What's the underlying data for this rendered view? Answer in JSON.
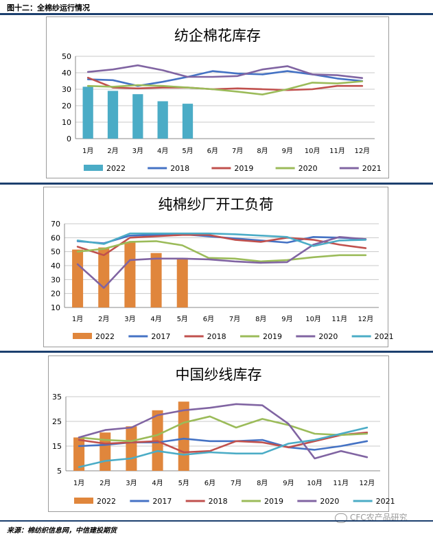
{
  "figure_label": "图十二：全棉纱运行情况",
  "source": "来源：棉纺织信息网，中信建投期货",
  "watermark": "CFC农产品研究",
  "chart_data": [
    {
      "type": "bar+line",
      "title": "纺企棉花库存",
      "categories": [
        "1月",
        "2月",
        "3月",
        "4月",
        "5月",
        "6月",
        "7月",
        "8月",
        "9月",
        "10月",
        "11月",
        "12月"
      ],
      "ylim": [
        0,
        50
      ],
      "yticks": [
        0,
        10,
        20,
        30,
        40,
        50
      ],
      "bar_color": "#4bacc6",
      "bar_series": {
        "name": "2022",
        "values": [
          31.5,
          29,
          27,
          22.7,
          21.2
        ]
      },
      "line_series": [
        {
          "name": "2018",
          "color": "#4472c4",
          "values": [
            36,
            35.5,
            32,
            34.5,
            37.5,
            41,
            39.5,
            39,
            41,
            39,
            36.5,
            35
          ]
        },
        {
          "name": "2019",
          "color": "#c0504d",
          "values": [
            37,
            31,
            30.5,
            31,
            31,
            30,
            30.5,
            30,
            29.5,
            30,
            32,
            32
          ]
        },
        {
          "name": "2020",
          "color": "#9bbb59",
          "values": [
            32,
            31.5,
            32.5,
            32,
            31,
            30,
            28.5,
            26.8,
            30,
            34,
            33.5,
            34.8
          ]
        },
        {
          "name": "2021",
          "color": "#8064a2",
          "values": [
            40.5,
            42,
            44.5,
            41.5,
            37.5,
            37.5,
            38,
            42,
            44,
            39,
            38.5,
            36.8
          ]
        }
      ],
      "grid": true,
      "legend": "bottom"
    },
    {
      "type": "bar+line",
      "title": "纯棉纱厂开工负荷",
      "categories": [
        "1月",
        "2月",
        "3月",
        "4月",
        "5月",
        "6月",
        "7月",
        "8月",
        "9月",
        "10月",
        "11月",
        "12月"
      ],
      "ylim": [
        10,
        70
      ],
      "yticks": [
        10,
        20,
        30,
        40,
        50,
        60,
        70
      ],
      "bar_color": "#e0863c",
      "bar_series": {
        "name": "2022",
        "values": [
          51.5,
          53,
          57,
          49,
          45.5
        ]
      },
      "line_series": [
        {
          "name": "2017",
          "color": "#4472c4",
          "values": [
            57.5,
            56,
            61.5,
            62,
            62.5,
            61,
            59.5,
            58,
            56.5,
            60.5,
            60,
            59
          ]
        },
        {
          "name": "2018",
          "color": "#c0504d",
          "values": [
            53.5,
            47.5,
            60,
            61,
            62,
            62,
            58.5,
            57,
            60,
            58.5,
            55,
            52.5
          ]
        },
        {
          "name": "2019",
          "color": "#9bbb59",
          "values": [
            50,
            52,
            57,
            57.5,
            54.5,
            45.5,
            45,
            43,
            44,
            46,
            47.5,
            47.5
          ]
        },
        {
          "name": "2020",
          "color": "#8064a2",
          "values": [
            41,
            24,
            44,
            45,
            45,
            44.5,
            43,
            42,
            42.5,
            55,
            60.5,
            59
          ]
        },
        {
          "name": "2021",
          "color": "#4bacc6",
          "values": [
            58,
            55.5,
            63,
            63,
            63,
            63,
            62.5,
            61.5,
            60.5,
            54,
            58,
            58.5
          ]
        }
      ],
      "grid": true,
      "legend": "bottom"
    },
    {
      "type": "bar+line",
      "title": "中国纱线库存",
      "categories": [
        "1月",
        "2月",
        "3月",
        "4月",
        "5月",
        "6月",
        "7月",
        "8月",
        "9月",
        "10月",
        "11月",
        "12月"
      ],
      "ylim": [
        5,
        35
      ],
      "yticks": [
        5,
        15,
        25,
        35
      ],
      "bar_color": "#e0863c",
      "bar_series": {
        "name": "2022",
        "values": [
          18.5,
          20.5,
          23,
          29.5,
          33
        ]
      },
      "line_series": [
        {
          "name": "2017",
          "color": "#4472c4",
          "values": [
            15,
            15.5,
            16.5,
            16.5,
            18,
            17,
            17,
            17.5,
            14.5,
            13.5,
            15,
            17
          ]
        },
        {
          "name": "2018",
          "color": "#c0504d",
          "values": [
            17.5,
            16,
            16.5,
            17,
            12.5,
            13,
            17,
            16.5,
            14.5,
            17,
            19.5,
            20.5
          ]
        },
        {
          "name": "2019",
          "color": "#9bbb59",
          "values": [
            18.5,
            17.5,
            17,
            19.5,
            24.5,
            27,
            22.5,
            26,
            23.5,
            20,
            19.5,
            20
          ]
        },
        {
          "name": "2020",
          "color": "#8064a2",
          "values": [
            18.5,
            21.5,
            22.5,
            27.5,
            29.5,
            30.5,
            32,
            31.5,
            24,
            10,
            13,
            10.5
          ]
        },
        {
          "name": "2021",
          "color": "#4bacc6",
          "values": [
            6.5,
            9,
            10,
            13,
            11.5,
            12.5,
            12,
            12,
            16,
            17.5,
            20,
            22.5
          ]
        }
      ],
      "grid": true,
      "legend": "bottom"
    }
  ]
}
